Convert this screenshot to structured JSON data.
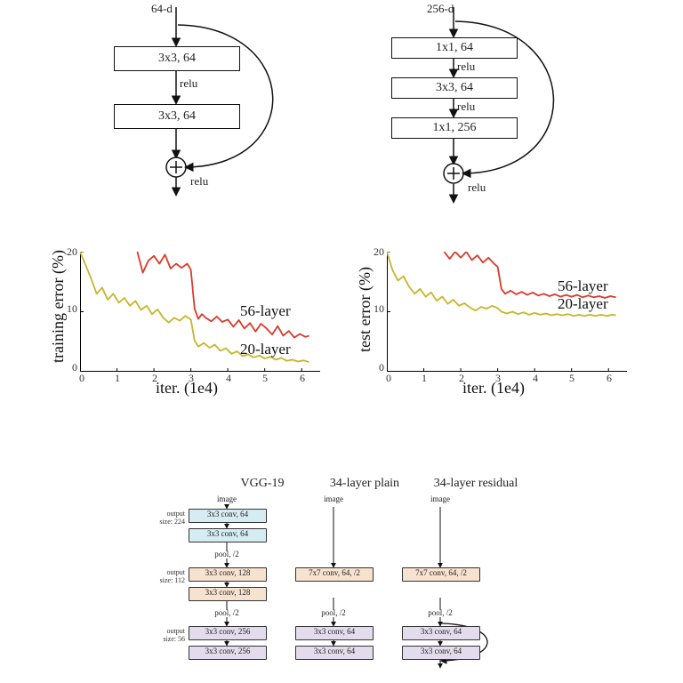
{
  "colors": {
    "line_red": "#d83a2b",
    "line_yellow": "#c7b52a",
    "box_blue": "#d6ecf3",
    "box_peach": "#f7e1cf",
    "box_lilac": "#e3dced",
    "axis": "#000000",
    "text": "#222222",
    "bg": "#ffffff"
  },
  "top_diagrams": {
    "left": {
      "input_label": "64-d",
      "blocks": [
        "3x3, 64",
        "3x3, 64"
      ],
      "mid_labels": [
        "relu"
      ],
      "out_label": "relu",
      "skip": true
    },
    "right": {
      "input_label": "256-d",
      "blocks": [
        "1x1, 64",
        "3x3, 64",
        "1x1, 256"
      ],
      "mid_labels": [
        "relu",
        "relu"
      ],
      "out_label": "relu",
      "skip": true
    }
  },
  "charts": {
    "type": "line",
    "xlim": [
      0,
      6.5
    ],
    "ylim": [
      0,
      20
    ],
    "xticks": [
      0,
      1,
      2,
      3,
      4,
      5,
      6
    ],
    "yticks": [
      0,
      10,
      20
    ],
    "xlabel": "iter. (1e4)",
    "line_width": 1.8,
    "label_fontsize": 18,
    "tick_fontsize": 12,
    "train": {
      "ylabel": "training error (%)",
      "series": {
        "56-layer": {
          "color": "#d83a2b",
          "label": "56-layer",
          "x": [
            1.55,
            1.7,
            1.85,
            2.0,
            2.15,
            2.3,
            2.45,
            2.6,
            2.75,
            2.9,
            3.0,
            3.1,
            3.2,
            3.3,
            3.4,
            3.55,
            3.7,
            3.85,
            4.0,
            4.15,
            4.3,
            4.45,
            4.6,
            4.75,
            4.9,
            5.05,
            5.2,
            5.35,
            5.5,
            5.65,
            5.8,
            5.95,
            6.1,
            6.2
          ],
          "y": [
            20.0,
            16.5,
            18.5,
            19.3,
            18.0,
            19.5,
            17.2,
            18.0,
            17.3,
            18.0,
            17.0,
            10.5,
            8.8,
            9.6,
            9.0,
            8.4,
            9.2,
            8.3,
            8.7,
            7.5,
            8.6,
            7.2,
            8.1,
            6.7,
            8.0,
            7.2,
            6.2,
            7.6,
            6.0,
            6.8,
            5.7,
            6.3,
            5.8,
            6.0
          ]
        },
        "20-layer": {
          "color": "#c7b52a",
          "label": "20-layer",
          "x": [
            0.0,
            0.15,
            0.3,
            0.45,
            0.6,
            0.75,
            0.9,
            1.05,
            1.2,
            1.35,
            1.5,
            1.65,
            1.8,
            1.95,
            2.1,
            2.25,
            2.4,
            2.55,
            2.7,
            2.85,
            3.0,
            3.1,
            3.2,
            3.35,
            3.5,
            3.65,
            3.8,
            3.95,
            4.1,
            4.25,
            4.4,
            4.55,
            4.7,
            4.85,
            5.0,
            5.15,
            5.3,
            5.45,
            5.6,
            5.75,
            5.9,
            6.05,
            6.2
          ],
          "y": [
            20.0,
            17.8,
            15.5,
            13.0,
            14.0,
            12.0,
            13.0,
            11.5,
            12.3,
            11.0,
            11.8,
            10.3,
            11.0,
            9.6,
            10.4,
            9.0,
            8.2,
            9.0,
            8.5,
            9.3,
            8.7,
            5.2,
            4.2,
            4.8,
            4.0,
            4.5,
            3.5,
            3.9,
            3.0,
            3.4,
            2.6,
            2.9,
            2.4,
            2.7,
            2.2,
            2.5,
            2.0,
            2.3,
            1.8,
            2.0,
            1.7,
            1.9,
            1.6
          ]
        }
      }
    },
    "test": {
      "ylabel": "test error (%)",
      "series": {
        "56-layer": {
          "color": "#d83a2b",
          "label": "56-layer",
          "x": [
            1.55,
            1.7,
            1.85,
            2.0,
            2.15,
            2.3,
            2.45,
            2.6,
            2.75,
            2.9,
            3.0,
            3.1,
            3.2,
            3.35,
            3.5,
            3.65,
            3.8,
            3.95,
            4.1,
            4.25,
            4.4,
            4.55,
            4.7,
            4.85,
            5.0,
            5.15,
            5.3,
            5.45,
            5.6,
            5.75,
            5.9,
            6.05,
            6.2
          ],
          "y": [
            20.0,
            18.8,
            20.0,
            19.0,
            20.0,
            18.6,
            19.4,
            18.2,
            19.0,
            18.0,
            17.5,
            13.8,
            13.0,
            13.5,
            12.9,
            13.3,
            12.8,
            13.2,
            12.7,
            13.0,
            12.6,
            12.9,
            12.5,
            12.8,
            12.5,
            12.8,
            12.4,
            12.7,
            12.4,
            12.6,
            12.3,
            12.6,
            12.4
          ]
        },
        "20-layer": {
          "color": "#c7b52a",
          "label": "20-layer",
          "x": [
            0.0,
            0.15,
            0.3,
            0.45,
            0.6,
            0.75,
            0.9,
            1.05,
            1.2,
            1.35,
            1.5,
            1.65,
            1.8,
            1.95,
            2.1,
            2.25,
            2.4,
            2.55,
            2.7,
            2.85,
            3.0,
            3.1,
            3.25,
            3.4,
            3.55,
            3.7,
            3.85,
            4.0,
            4.15,
            4.3,
            4.45,
            4.6,
            4.75,
            4.9,
            5.05,
            5.2,
            5.35,
            5.5,
            5.65,
            5.8,
            5.95,
            6.1,
            6.2
          ],
          "y": [
            20.0,
            17.0,
            15.2,
            15.9,
            14.2,
            13.0,
            13.8,
            12.5,
            13.2,
            11.8,
            12.5,
            11.3,
            12.0,
            11.0,
            11.4,
            10.7,
            10.2,
            10.8,
            10.5,
            11.0,
            10.6,
            10.0,
            9.7,
            10.0,
            9.6,
            9.9,
            9.5,
            9.8,
            9.5,
            9.7,
            9.4,
            9.6,
            9.4,
            9.6,
            9.3,
            9.5,
            9.3,
            9.5,
            9.3,
            9.5,
            9.3,
            9.5,
            9.4
          ]
        }
      }
    }
  },
  "architectures": {
    "columns": [
      {
        "title": "VGG-19",
        "input": "image",
        "items": [
          {
            "kind": "box",
            "color": "blue",
            "text": "3x3 conv, 64"
          },
          {
            "kind": "box",
            "color": "blue",
            "text": "3x3 conv, 64"
          },
          {
            "kind": "label",
            "text": "pool, /2"
          },
          {
            "kind": "box",
            "color": "peach",
            "text": "3x3 conv, 128"
          },
          {
            "kind": "box",
            "color": "peach",
            "text": "3x3 conv, 128"
          },
          {
            "kind": "label",
            "text": "pool, /2"
          },
          {
            "kind": "box",
            "color": "lilac",
            "text": "3x3 conv, 256"
          },
          {
            "kind": "box",
            "color": "lilac",
            "text": "3x3 conv, 256"
          }
        ],
        "side_labels": [
          {
            "text": "output\nsize: 224"
          },
          {
            "text": "output\nsize: 112"
          },
          {
            "text": "output\nsize: 56"
          }
        ]
      },
      {
        "title": "34-layer plain",
        "input": "image",
        "items": [
          {
            "kind": "gap"
          },
          {
            "kind": "gap"
          },
          {
            "kind": "gap"
          },
          {
            "kind": "box",
            "color": "peach",
            "text": "7x7 conv, 64, /2"
          },
          {
            "kind": "gap"
          },
          {
            "kind": "label",
            "text": "pool, /2"
          },
          {
            "kind": "box",
            "color": "lilac",
            "text": "3x3 conv, 64"
          },
          {
            "kind": "box",
            "color": "lilac",
            "text": "3x3 conv, 64"
          }
        ],
        "side_labels": []
      },
      {
        "title": "34-layer residual",
        "input": "image",
        "items": [
          {
            "kind": "gap"
          },
          {
            "kind": "gap"
          },
          {
            "kind": "gap"
          },
          {
            "kind": "box",
            "color": "peach",
            "text": "7x7 conv, 64, /2"
          },
          {
            "kind": "gap"
          },
          {
            "kind": "label",
            "text": "pool, /2"
          },
          {
            "kind": "box",
            "color": "lilac",
            "text": "3x3 conv, 64"
          },
          {
            "kind": "box",
            "color": "lilac",
            "text": "3x3 conv, 64"
          }
        ],
        "side_labels": [],
        "skip_last_two": true
      }
    ]
  }
}
